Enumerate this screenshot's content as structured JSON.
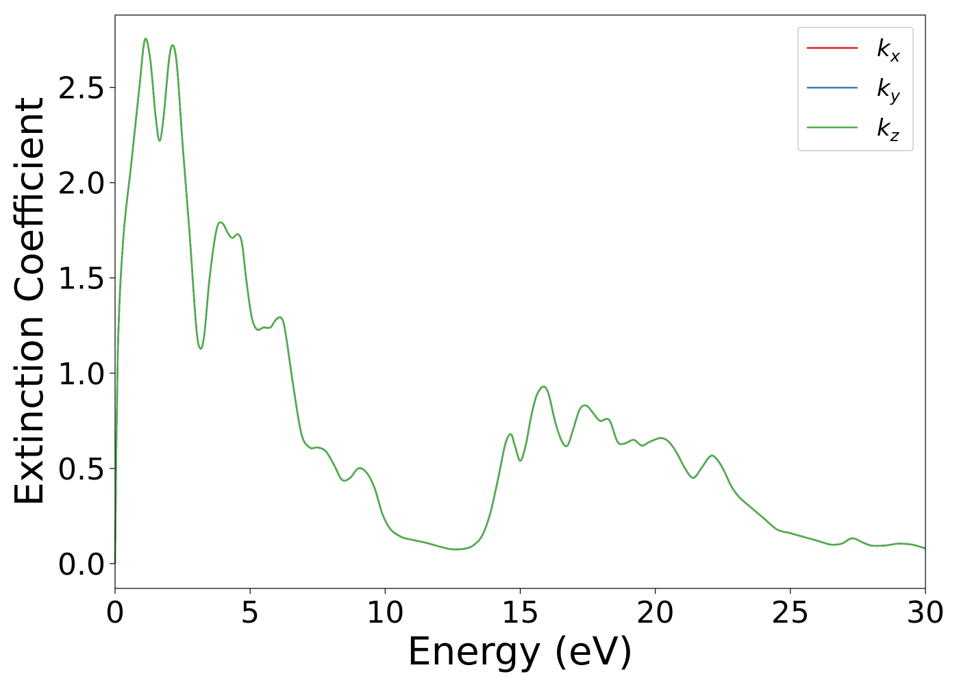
{
  "chart_data": {
    "type": "line",
    "title": "",
    "xlabel": "Energy (eV)",
    "ylabel": "Extinction Coefficient",
    "xlim": [
      0,
      30
    ],
    "ylim": [
      -0.13,
      2.88
    ],
    "xticks": [
      0,
      5,
      10,
      15,
      20,
      25,
      30
    ],
    "xtick_labels": [
      "0",
      "5",
      "10",
      "15",
      "20",
      "25",
      "30"
    ],
    "yticks": [
      0.0,
      0.5,
      1.0,
      1.5,
      2.0,
      2.5
    ],
    "ytick_labels": [
      "0.0",
      "0.5",
      "1.0",
      "1.5",
      "2.0",
      "2.5"
    ],
    "grid": false,
    "legend_position": "top-right",
    "series": [
      {
        "name": "k",
        "subscript": "x",
        "color": "#e41a1c",
        "x": [
          0,
          0.1,
          0.3,
          0.6,
          0.9,
          1.1,
          1.3,
          1.5,
          1.65,
          1.8,
          2.0,
          2.15,
          2.3,
          2.5,
          2.75,
          3.0,
          3.15,
          3.3,
          3.5,
          3.75,
          3.95,
          4.2,
          4.35,
          4.55,
          4.7,
          4.85,
          5.05,
          5.25,
          5.5,
          5.75,
          5.95,
          6.15,
          6.3,
          6.6,
          6.9,
          7.2,
          7.5,
          7.8,
          8.1,
          8.4,
          8.7,
          9.0,
          9.3,
          9.6,
          9.9,
          10.2,
          10.6,
          11.0,
          11.5,
          12.0,
          12.5,
          13.0,
          13.3,
          13.6,
          13.9,
          14.2,
          14.45,
          14.65,
          14.8,
          15.0,
          15.2,
          15.4,
          15.6,
          15.85,
          16.05,
          16.3,
          16.55,
          16.75,
          16.95,
          17.2,
          17.45,
          17.7,
          17.95,
          18.2,
          18.35,
          18.6,
          18.85,
          19.2,
          19.5,
          19.8,
          20.2,
          20.5,
          20.8,
          21.1,
          21.4,
          21.7,
          22.0,
          22.2,
          22.5,
          22.8,
          23.1,
          23.5,
          24.0,
          24.5,
          25.0,
          25.5,
          26.0,
          26.5,
          26.9,
          27.2,
          27.4,
          27.7,
          28.0,
          28.5,
          29.0,
          29.5,
          30.0
        ],
        "values": [
          0.0,
          1.1,
          1.7,
          2.1,
          2.5,
          2.75,
          2.65,
          2.35,
          2.22,
          2.35,
          2.65,
          2.72,
          2.6,
          2.2,
          1.75,
          1.25,
          1.13,
          1.2,
          1.5,
          1.75,
          1.79,
          1.73,
          1.71,
          1.73,
          1.68,
          1.5,
          1.3,
          1.23,
          1.24,
          1.24,
          1.28,
          1.29,
          1.22,
          0.93,
          0.68,
          0.61,
          0.61,
          0.59,
          0.52,
          0.44,
          0.45,
          0.5,
          0.48,
          0.4,
          0.26,
          0.18,
          0.14,
          0.125,
          0.11,
          0.09,
          0.075,
          0.08,
          0.1,
          0.15,
          0.27,
          0.46,
          0.63,
          0.68,
          0.62,
          0.54,
          0.62,
          0.77,
          0.88,
          0.93,
          0.89,
          0.74,
          0.64,
          0.62,
          0.7,
          0.81,
          0.83,
          0.79,
          0.75,
          0.76,
          0.74,
          0.64,
          0.63,
          0.65,
          0.62,
          0.64,
          0.66,
          0.64,
          0.58,
          0.5,
          0.45,
          0.5,
          0.56,
          0.56,
          0.5,
          0.41,
          0.35,
          0.3,
          0.24,
          0.18,
          0.16,
          0.14,
          0.12,
          0.1,
          0.105,
          0.13,
          0.13,
          0.11,
          0.095,
          0.095,
          0.105,
          0.1,
          0.08
        ]
      },
      {
        "name": "k",
        "subscript": "y",
        "color": "#377eb8",
        "x": [
          0,
          0.1,
          0.3,
          0.6,
          0.9,
          1.1,
          1.3,
          1.5,
          1.65,
          1.8,
          2.0,
          2.15,
          2.3,
          2.5,
          2.75,
          3.0,
          3.15,
          3.3,
          3.5,
          3.75,
          3.95,
          4.2,
          4.35,
          4.55,
          4.7,
          4.85,
          5.05,
          5.25,
          5.5,
          5.75,
          5.95,
          6.15,
          6.3,
          6.6,
          6.9,
          7.2,
          7.5,
          7.8,
          8.1,
          8.4,
          8.7,
          9.0,
          9.3,
          9.6,
          9.9,
          10.2,
          10.6,
          11.0,
          11.5,
          12.0,
          12.5,
          13.0,
          13.3,
          13.6,
          13.9,
          14.2,
          14.45,
          14.65,
          14.8,
          15.0,
          15.2,
          15.4,
          15.6,
          15.85,
          16.05,
          16.3,
          16.55,
          16.75,
          16.95,
          17.2,
          17.45,
          17.7,
          17.95,
          18.2,
          18.35,
          18.6,
          18.85,
          19.2,
          19.5,
          19.8,
          20.2,
          20.5,
          20.8,
          21.1,
          21.4,
          21.7,
          22.0,
          22.2,
          22.5,
          22.8,
          23.1,
          23.5,
          24.0,
          24.5,
          25.0,
          25.5,
          26.0,
          26.5,
          26.9,
          27.2,
          27.4,
          27.7,
          28.0,
          28.5,
          29.0,
          29.5,
          30.0
        ],
        "values": [
          0.0,
          1.1,
          1.7,
          2.1,
          2.5,
          2.75,
          2.65,
          2.35,
          2.22,
          2.35,
          2.65,
          2.72,
          2.6,
          2.2,
          1.75,
          1.25,
          1.13,
          1.2,
          1.5,
          1.75,
          1.79,
          1.73,
          1.71,
          1.73,
          1.68,
          1.5,
          1.3,
          1.23,
          1.24,
          1.24,
          1.28,
          1.29,
          1.22,
          0.93,
          0.68,
          0.61,
          0.61,
          0.59,
          0.52,
          0.44,
          0.45,
          0.5,
          0.48,
          0.4,
          0.26,
          0.18,
          0.14,
          0.125,
          0.11,
          0.09,
          0.075,
          0.08,
          0.1,
          0.15,
          0.27,
          0.46,
          0.63,
          0.68,
          0.62,
          0.54,
          0.62,
          0.77,
          0.88,
          0.93,
          0.89,
          0.74,
          0.64,
          0.62,
          0.7,
          0.81,
          0.83,
          0.79,
          0.75,
          0.76,
          0.74,
          0.64,
          0.63,
          0.65,
          0.62,
          0.64,
          0.66,
          0.64,
          0.58,
          0.5,
          0.45,
          0.5,
          0.56,
          0.56,
          0.5,
          0.41,
          0.35,
          0.3,
          0.24,
          0.18,
          0.16,
          0.14,
          0.12,
          0.1,
          0.105,
          0.13,
          0.13,
          0.11,
          0.095,
          0.095,
          0.105,
          0.1,
          0.08
        ]
      },
      {
        "name": "k",
        "subscript": "z",
        "color": "#4daf4a",
        "x": [
          0,
          0.1,
          0.3,
          0.6,
          0.9,
          1.1,
          1.3,
          1.5,
          1.65,
          1.8,
          2.0,
          2.15,
          2.3,
          2.5,
          2.75,
          3.0,
          3.15,
          3.3,
          3.5,
          3.75,
          3.95,
          4.2,
          4.35,
          4.55,
          4.7,
          4.85,
          5.05,
          5.25,
          5.5,
          5.75,
          5.95,
          6.15,
          6.3,
          6.6,
          6.9,
          7.2,
          7.5,
          7.8,
          8.1,
          8.4,
          8.7,
          9.0,
          9.3,
          9.6,
          9.9,
          10.2,
          10.6,
          11.0,
          11.5,
          12.0,
          12.5,
          13.0,
          13.3,
          13.6,
          13.9,
          14.2,
          14.45,
          14.65,
          14.8,
          15.0,
          15.2,
          15.4,
          15.6,
          15.85,
          16.05,
          16.3,
          16.55,
          16.75,
          16.95,
          17.2,
          17.45,
          17.7,
          17.95,
          18.2,
          18.35,
          18.6,
          18.85,
          19.2,
          19.5,
          19.8,
          20.2,
          20.5,
          20.8,
          21.1,
          21.4,
          21.7,
          22.0,
          22.2,
          22.5,
          22.8,
          23.1,
          23.5,
          24.0,
          24.5,
          25.0,
          25.5,
          26.0,
          26.5,
          26.9,
          27.2,
          27.4,
          27.7,
          28.0,
          28.5,
          29.0,
          29.5,
          30.0
        ],
        "values": [
          0.0,
          1.1,
          1.7,
          2.1,
          2.5,
          2.75,
          2.65,
          2.35,
          2.22,
          2.35,
          2.65,
          2.72,
          2.6,
          2.2,
          1.75,
          1.25,
          1.13,
          1.2,
          1.5,
          1.75,
          1.79,
          1.73,
          1.71,
          1.73,
          1.68,
          1.5,
          1.3,
          1.23,
          1.24,
          1.24,
          1.28,
          1.29,
          1.22,
          0.93,
          0.68,
          0.61,
          0.61,
          0.59,
          0.52,
          0.44,
          0.45,
          0.5,
          0.48,
          0.4,
          0.26,
          0.18,
          0.14,
          0.125,
          0.11,
          0.09,
          0.075,
          0.08,
          0.1,
          0.15,
          0.27,
          0.46,
          0.63,
          0.68,
          0.62,
          0.54,
          0.62,
          0.77,
          0.88,
          0.93,
          0.89,
          0.74,
          0.64,
          0.62,
          0.7,
          0.81,
          0.83,
          0.79,
          0.75,
          0.76,
          0.74,
          0.64,
          0.63,
          0.65,
          0.62,
          0.64,
          0.66,
          0.64,
          0.58,
          0.5,
          0.45,
          0.5,
          0.56,
          0.56,
          0.5,
          0.41,
          0.35,
          0.3,
          0.24,
          0.18,
          0.16,
          0.14,
          0.12,
          0.1,
          0.105,
          0.13,
          0.13,
          0.11,
          0.095,
          0.095,
          0.105,
          0.1,
          0.08
        ]
      }
    ]
  }
}
